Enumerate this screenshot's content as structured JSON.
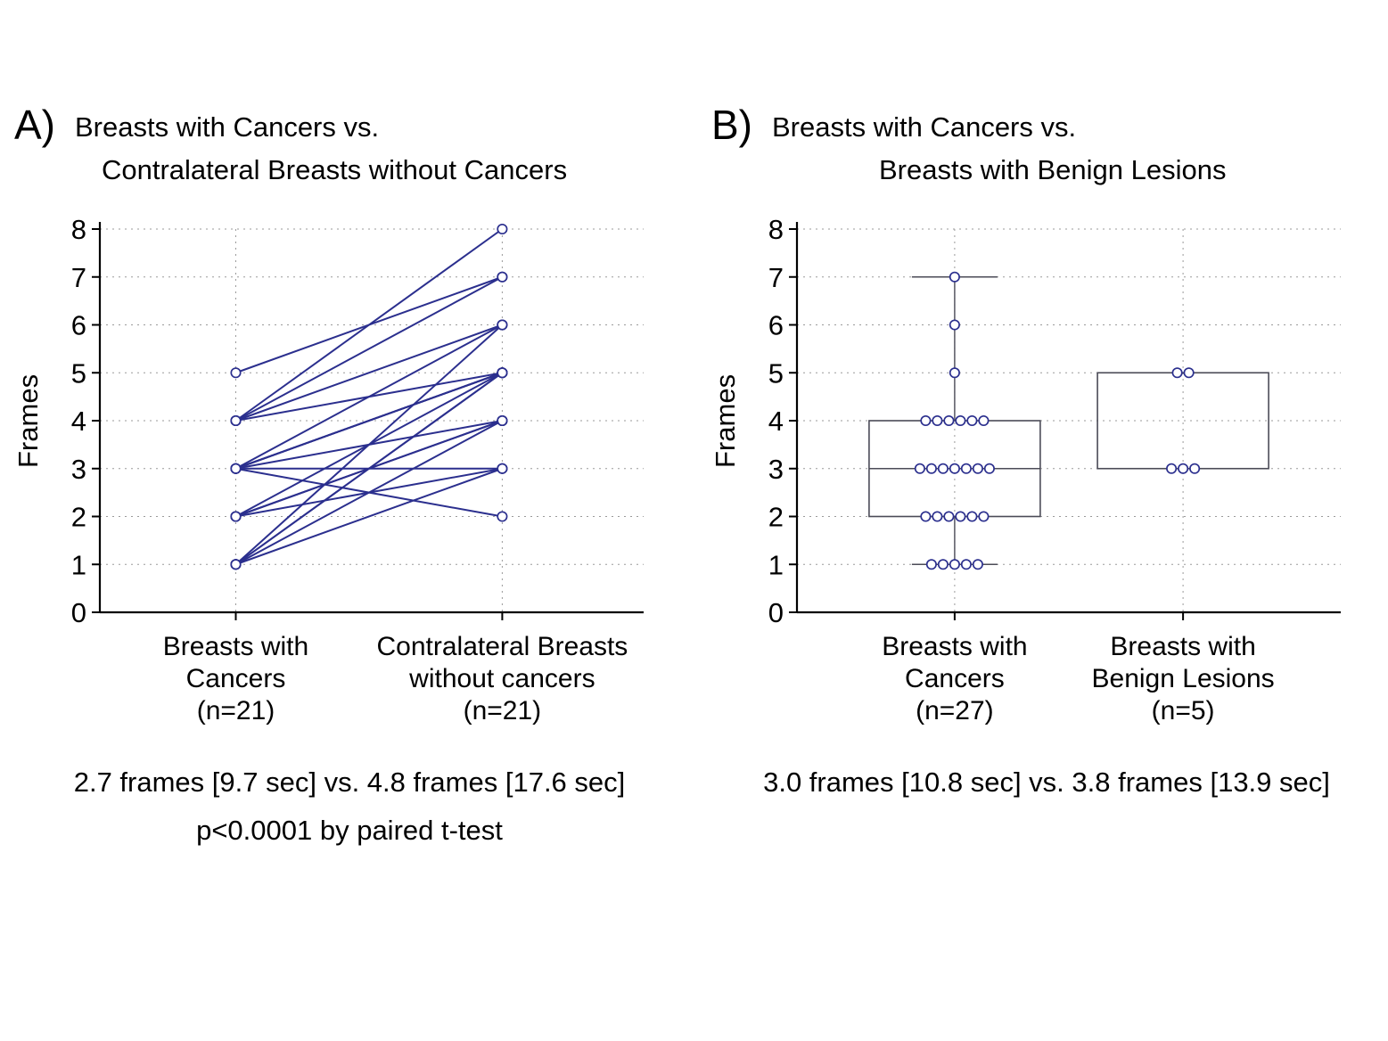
{
  "colors": {
    "series": "#2b2f8e",
    "box": "#4b4b57",
    "grid": "#9a9a9a",
    "axis": "#000000",
    "background": "#ffffff"
  },
  "chart_data": [
    {
      "type": "paired-line",
      "panel_label": "A)",
      "title": [
        "Breasts with Cancers vs.",
        "Contralateral Breasts without Cancers"
      ],
      "ylabel": "Frames",
      "ylim": [
        0,
        8
      ],
      "yticks": [
        0,
        1,
        2,
        3,
        4,
        5,
        6,
        7,
        8
      ],
      "grid": "dotted",
      "cat_x": [
        0.25,
        0.74
      ],
      "categories": [
        [
          "Breasts with",
          "Cancers",
          "(n=21)"
        ],
        [
          "Contralateral Breasts",
          "without cancers",
          "(n=21)"
        ]
      ],
      "pairs": [
        [
          5,
          7
        ],
        [
          4,
          8
        ],
        [
          4,
          7
        ],
        [
          4,
          6
        ],
        [
          4,
          5
        ],
        [
          3,
          6
        ],
        [
          3,
          5
        ],
        [
          3,
          5
        ],
        [
          3,
          5
        ],
        [
          3,
          4
        ],
        [
          3,
          3
        ],
        [
          3,
          2
        ],
        [
          2,
          5
        ],
        [
          2,
          4
        ],
        [
          2,
          4
        ],
        [
          2,
          3
        ],
        [
          1,
          6
        ],
        [
          1,
          5
        ],
        [
          1,
          5
        ],
        [
          1,
          4
        ],
        [
          1,
          3
        ]
      ],
      "summary": {
        "group1_mean_frames": 2.7,
        "group1_mean_sec": 9.7,
        "group2_mean_frames": 4.8,
        "group2_mean_sec": 17.6,
        "p_value": "p<0.0001",
        "test": "paired t-test"
      },
      "caption": [
        "2.7 frames [9.7 sec] vs. 4.8 frames [17.6 sec]",
        "p<0.0001 by paired t-test"
      ]
    },
    {
      "type": "box-jitter",
      "panel_label": "B)",
      "title": [
        "Breasts with Cancers vs.",
        "Breasts with Benign Lesions"
      ],
      "ylabel": "Frames",
      "ylim": [
        0,
        8
      ],
      "yticks": [
        0,
        1,
        2,
        3,
        4,
        5,
        6,
        7,
        8
      ],
      "grid": "dotted",
      "cat_x": [
        0.29,
        0.71
      ],
      "categories": [
        [
          "Breasts with",
          "Cancers",
          "(n=27)"
        ],
        [
          "Breasts with",
          "Benign Lesions",
          "(n=5)"
        ]
      ],
      "groups": [
        {
          "name": "Breasts with Cancers",
          "values": [
            7,
            6,
            5,
            4,
            4,
            4,
            4,
            4,
            4,
            3,
            3,
            3,
            3,
            3,
            3,
            3,
            2,
            2,
            2,
            2,
            2,
            2,
            1,
            1,
            1,
            1,
            1
          ],
          "box": {
            "q1": 2,
            "median": 3,
            "q3": 4,
            "whisker_low": 1,
            "whisker_high": 7
          }
        },
        {
          "name": "Breasts with Benign Lesions",
          "values": [
            5,
            5,
            3,
            3,
            3
          ],
          "box": {
            "q1": 3,
            "median": 3,
            "q3": 5,
            "whisker_low": 3,
            "whisker_high": 5
          }
        }
      ],
      "summary": {
        "group1_mean_frames": 3.0,
        "group1_mean_sec": 10.8,
        "group2_mean_frames": 3.8,
        "group2_mean_sec": 13.9
      },
      "caption": [
        "3.0 frames [10.8 sec] vs. 3.8 frames [13.9 sec]"
      ]
    }
  ]
}
